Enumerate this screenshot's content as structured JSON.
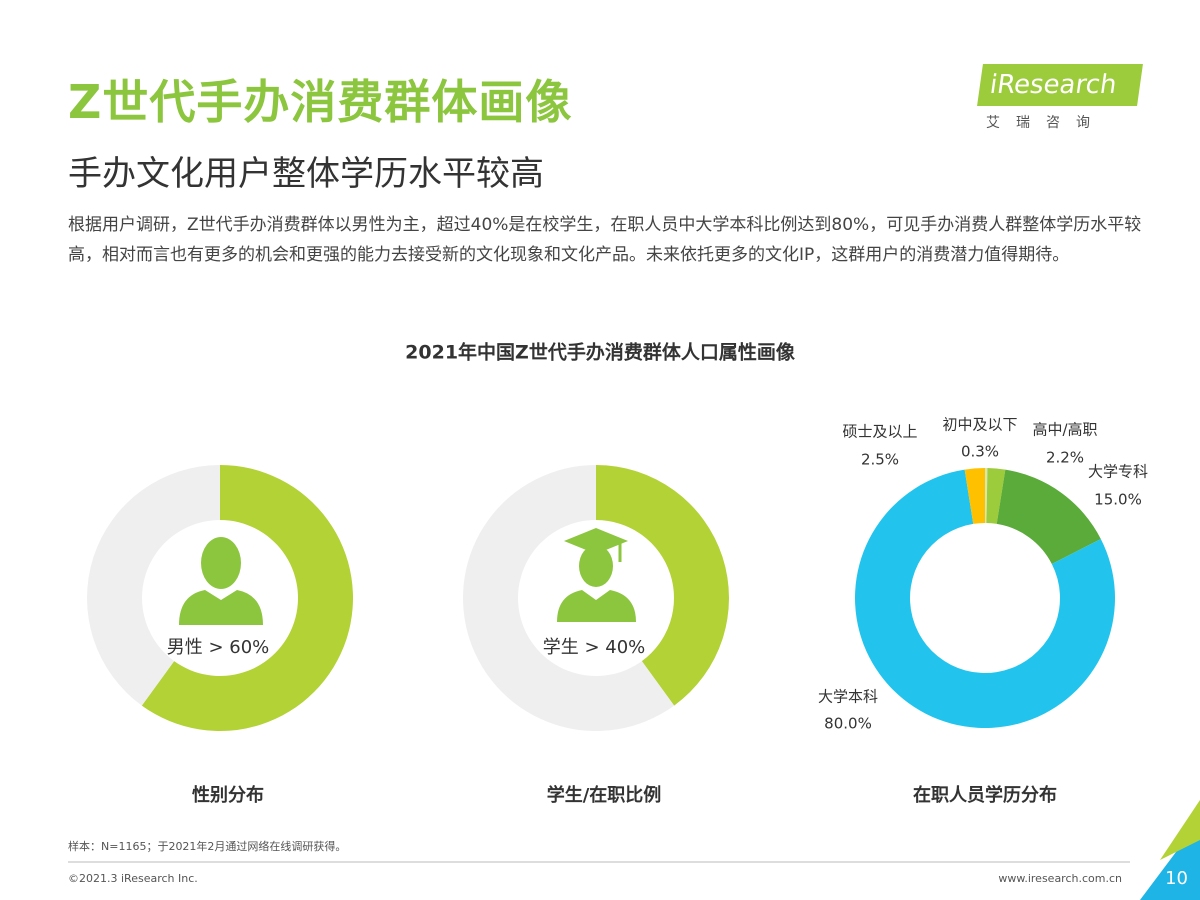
{
  "header": {
    "title": "Z世代手办消费群体画像",
    "subtitle": "手办文化用户整体学历水平较高"
  },
  "body": "根据用户调研，Z世代手办消费群体以男性为主，超过40%是在校学生，在职人员中大学本科比例达到80%，可见手办消费人群整体学历水平较高，相对而言也有更多的机会和更强的能力去接受新的文化现象和文化产品。未来依托更多的文化IP，这群用户的消费潜力值得期待。",
  "logo": {
    "name": "iResearch",
    "subtitle": "艾瑞咨询"
  },
  "group_title": "2021年中国Z世代手办消费群体人口属性画像",
  "chart_data": [
    {
      "type": "donut",
      "title": "性别分布",
      "annotation": "男性 > 60%",
      "values": [
        60,
        40
      ],
      "colors": [
        "#b2d235",
        "#efefef"
      ]
    },
    {
      "type": "donut",
      "title": "学生/在职比例",
      "annotation": "学生 > 40%",
      "values": [
        40,
        60
      ],
      "colors": [
        "#b2d235",
        "#efefef"
      ]
    },
    {
      "type": "donut",
      "title": "在职人员学历分布",
      "categories": [
        "初中及以下",
        "高中/高职",
        "大学专科",
        "大学本科",
        "硕士及以上"
      ],
      "values": [
        0.3,
        2.2,
        15.0,
        80.0,
        2.5
      ],
      "value_labels": [
        "0.3%",
        "2.2%",
        "15.0%",
        "80.0%",
        "2.5%"
      ],
      "colors": [
        "#d9e8b0",
        "#9ccc3c",
        "#5aab3a",
        "#22c4ee",
        "#ffc000"
      ]
    }
  ],
  "footer": {
    "sample": "样本：N=1165；于2021年2月通过网络在线调研获得。",
    "copyright": "©2021.3 iResearch Inc.",
    "website": "www.iresearch.com.cn",
    "page": "10"
  }
}
